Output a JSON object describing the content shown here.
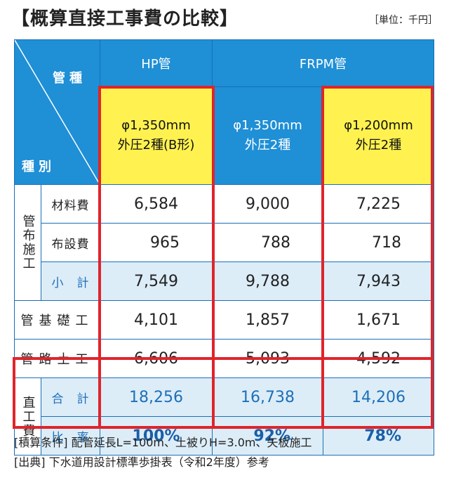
{
  "title": "【概算直接工事費の比較】",
  "unit": "［単位：千円］",
  "header": {
    "kanshu": "管種",
    "shubetsu": "種別",
    "groups": [
      "HP管",
      "FRPM管"
    ],
    "pipes": [
      {
        "line1": "φ1,350mm",
        "line2": "外圧2種(B形)"
      },
      {
        "line1": "φ1,350mm",
        "line2": "外圧2種"
      },
      {
        "line1": "φ1,200mm",
        "line2": "外圧2種"
      }
    ]
  },
  "group_kanfu": "管布施工",
  "group_chokko": "直工費",
  "rows": [
    {
      "label": "材料費",
      "values": [
        "6,584",
        "9,000",
        "7,225"
      ]
    },
    {
      "label": "布設費",
      "values": [
        "965",
        "788",
        "718"
      ]
    },
    {
      "label": "小　計",
      "values": [
        "7,549",
        "9,788",
        "7,943"
      ]
    },
    {
      "label": "管基礎工",
      "values": [
        "4,101",
        "1,857",
        "1,671"
      ]
    },
    {
      "label": "管路土工",
      "values": [
        "6,606",
        "5,093",
        "4,592"
      ]
    },
    {
      "label": "合　計",
      "values": [
        "18,256",
        "16,738",
        "14,206"
      ]
    },
    {
      "label": "比　率",
      "values": [
        "100%",
        "92%",
        "78%"
      ]
    }
  ],
  "notes": [
    "[積算条件] 配管延長L=100m、土被りH=3.0m、矢板施工",
    "[出典] 下水道用設計標準歩掛表（令和2年度）参考"
  ],
  "colors": {
    "header_blue": "#1f8fd6",
    "highlight_yellow": "#fff250",
    "subtotal_blue": "#dcedf8",
    "red_frame": "#e0242b"
  }
}
